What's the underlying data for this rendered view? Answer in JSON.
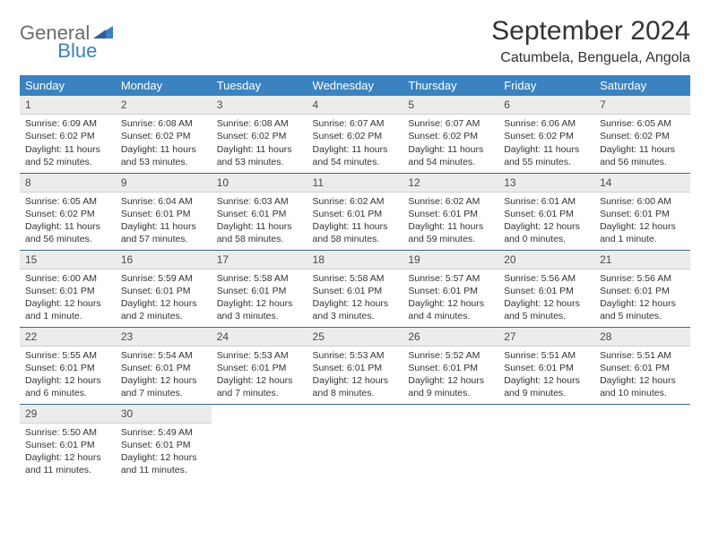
{
  "logo": {
    "word1": "General",
    "word2": "Blue"
  },
  "title": "September 2024",
  "location": "Catumbela, Benguela, Angola",
  "colors": {
    "header_bg": "#3b83c0",
    "header_text": "#ffffff",
    "daynum_bg": "#ececec",
    "row_border": "#3b6b8f",
    "logo_gray": "#6b6b6b",
    "logo_blue": "#3b7fc4"
  },
  "weekdays": [
    "Sunday",
    "Monday",
    "Tuesday",
    "Wednesday",
    "Thursday",
    "Friday",
    "Saturday"
  ],
  "weeks": [
    [
      {
        "n": "1",
        "sunrise": "Sunrise: 6:09 AM",
        "sunset": "Sunset: 6:02 PM",
        "daylight": "Daylight: 11 hours and 52 minutes."
      },
      {
        "n": "2",
        "sunrise": "Sunrise: 6:08 AM",
        "sunset": "Sunset: 6:02 PM",
        "daylight": "Daylight: 11 hours and 53 minutes."
      },
      {
        "n": "3",
        "sunrise": "Sunrise: 6:08 AM",
        "sunset": "Sunset: 6:02 PM",
        "daylight": "Daylight: 11 hours and 53 minutes."
      },
      {
        "n": "4",
        "sunrise": "Sunrise: 6:07 AM",
        "sunset": "Sunset: 6:02 PM",
        "daylight": "Daylight: 11 hours and 54 minutes."
      },
      {
        "n": "5",
        "sunrise": "Sunrise: 6:07 AM",
        "sunset": "Sunset: 6:02 PM",
        "daylight": "Daylight: 11 hours and 54 minutes."
      },
      {
        "n": "6",
        "sunrise": "Sunrise: 6:06 AM",
        "sunset": "Sunset: 6:02 PM",
        "daylight": "Daylight: 11 hours and 55 minutes."
      },
      {
        "n": "7",
        "sunrise": "Sunrise: 6:05 AM",
        "sunset": "Sunset: 6:02 PM",
        "daylight": "Daylight: 11 hours and 56 minutes."
      }
    ],
    [
      {
        "n": "8",
        "sunrise": "Sunrise: 6:05 AM",
        "sunset": "Sunset: 6:02 PM",
        "daylight": "Daylight: 11 hours and 56 minutes."
      },
      {
        "n": "9",
        "sunrise": "Sunrise: 6:04 AM",
        "sunset": "Sunset: 6:01 PM",
        "daylight": "Daylight: 11 hours and 57 minutes."
      },
      {
        "n": "10",
        "sunrise": "Sunrise: 6:03 AM",
        "sunset": "Sunset: 6:01 PM",
        "daylight": "Daylight: 11 hours and 58 minutes."
      },
      {
        "n": "11",
        "sunrise": "Sunrise: 6:02 AM",
        "sunset": "Sunset: 6:01 PM",
        "daylight": "Daylight: 11 hours and 58 minutes."
      },
      {
        "n": "12",
        "sunrise": "Sunrise: 6:02 AM",
        "sunset": "Sunset: 6:01 PM",
        "daylight": "Daylight: 11 hours and 59 minutes."
      },
      {
        "n": "13",
        "sunrise": "Sunrise: 6:01 AM",
        "sunset": "Sunset: 6:01 PM",
        "daylight": "Daylight: 12 hours and 0 minutes."
      },
      {
        "n": "14",
        "sunrise": "Sunrise: 6:00 AM",
        "sunset": "Sunset: 6:01 PM",
        "daylight": "Daylight: 12 hours and 1 minute."
      }
    ],
    [
      {
        "n": "15",
        "sunrise": "Sunrise: 6:00 AM",
        "sunset": "Sunset: 6:01 PM",
        "daylight": "Daylight: 12 hours and 1 minute."
      },
      {
        "n": "16",
        "sunrise": "Sunrise: 5:59 AM",
        "sunset": "Sunset: 6:01 PM",
        "daylight": "Daylight: 12 hours and 2 minutes."
      },
      {
        "n": "17",
        "sunrise": "Sunrise: 5:58 AM",
        "sunset": "Sunset: 6:01 PM",
        "daylight": "Daylight: 12 hours and 3 minutes."
      },
      {
        "n": "18",
        "sunrise": "Sunrise: 5:58 AM",
        "sunset": "Sunset: 6:01 PM",
        "daylight": "Daylight: 12 hours and 3 minutes."
      },
      {
        "n": "19",
        "sunrise": "Sunrise: 5:57 AM",
        "sunset": "Sunset: 6:01 PM",
        "daylight": "Daylight: 12 hours and 4 minutes."
      },
      {
        "n": "20",
        "sunrise": "Sunrise: 5:56 AM",
        "sunset": "Sunset: 6:01 PM",
        "daylight": "Daylight: 12 hours and 5 minutes."
      },
      {
        "n": "21",
        "sunrise": "Sunrise: 5:56 AM",
        "sunset": "Sunset: 6:01 PM",
        "daylight": "Daylight: 12 hours and 5 minutes."
      }
    ],
    [
      {
        "n": "22",
        "sunrise": "Sunrise: 5:55 AM",
        "sunset": "Sunset: 6:01 PM",
        "daylight": "Daylight: 12 hours and 6 minutes."
      },
      {
        "n": "23",
        "sunrise": "Sunrise: 5:54 AM",
        "sunset": "Sunset: 6:01 PM",
        "daylight": "Daylight: 12 hours and 7 minutes."
      },
      {
        "n": "24",
        "sunrise": "Sunrise: 5:53 AM",
        "sunset": "Sunset: 6:01 PM",
        "daylight": "Daylight: 12 hours and 7 minutes."
      },
      {
        "n": "25",
        "sunrise": "Sunrise: 5:53 AM",
        "sunset": "Sunset: 6:01 PM",
        "daylight": "Daylight: 12 hours and 8 minutes."
      },
      {
        "n": "26",
        "sunrise": "Sunrise: 5:52 AM",
        "sunset": "Sunset: 6:01 PM",
        "daylight": "Daylight: 12 hours and 9 minutes."
      },
      {
        "n": "27",
        "sunrise": "Sunrise: 5:51 AM",
        "sunset": "Sunset: 6:01 PM",
        "daylight": "Daylight: 12 hours and 9 minutes."
      },
      {
        "n": "28",
        "sunrise": "Sunrise: 5:51 AM",
        "sunset": "Sunset: 6:01 PM",
        "daylight": "Daylight: 12 hours and 10 minutes."
      }
    ],
    [
      {
        "n": "29",
        "sunrise": "Sunrise: 5:50 AM",
        "sunset": "Sunset: 6:01 PM",
        "daylight": "Daylight: 12 hours and 11 minutes."
      },
      {
        "n": "30",
        "sunrise": "Sunrise: 5:49 AM",
        "sunset": "Sunset: 6:01 PM",
        "daylight": "Daylight: 12 hours and 11 minutes."
      },
      null,
      null,
      null,
      null,
      null
    ]
  ]
}
